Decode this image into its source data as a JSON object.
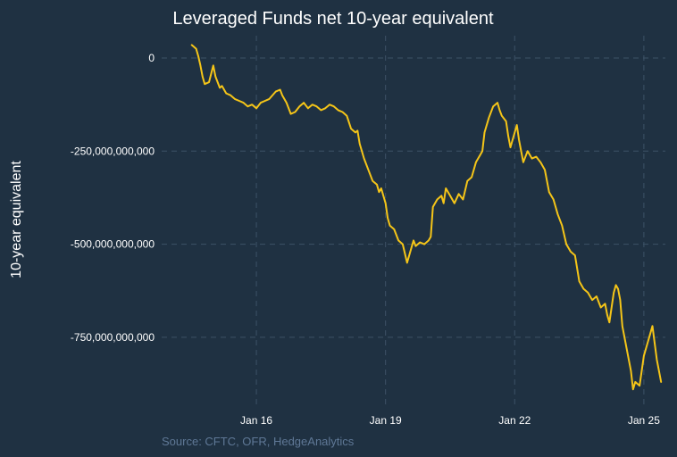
{
  "chart_data": {
    "type": "line",
    "title": "Leveraged Funds net 10-year equivalent",
    "xlabel": "",
    "ylabel": "10-year equivalent",
    "source": "Source: CFTC, OFR, HedgeAnalytics",
    "x_ticks": [
      {
        "label": "Jan 16",
        "value": 2016.0
      },
      {
        "label": "Jan 19",
        "value": 2019.0
      },
      {
        "label": "Jan 22",
        "value": 2022.0
      },
      {
        "label": "Jan 25",
        "value": 2025.0
      }
    ],
    "y_ticks": [
      {
        "label": "0",
        "value": 0
      },
      {
        "label": "-250,000,000,000",
        "value": -250000000000
      },
      {
        "label": "-500,000,000,000",
        "value": -500000000000
      },
      {
        "label": "-750,000,000,000",
        "value": -750000000000
      }
    ],
    "xlim": [
      2013.8,
      2025.5
    ],
    "ylim": [
      -935000000000,
      60000000000
    ],
    "grid": true,
    "series": [
      {
        "color": "#f5c518",
        "x": [
          2014.5,
          2014.6,
          2014.65,
          2014.7,
          2014.75,
          2014.8,
          2014.9,
          2015.0,
          2015.05,
          2015.15,
          2015.2,
          2015.3,
          2015.4,
          2015.5,
          2015.6,
          2015.7,
          2015.8,
          2015.9,
          2016.0,
          2016.1,
          2016.2,
          2016.3,
          2016.45,
          2016.55,
          2016.6,
          2016.7,
          2016.8,
          2016.9,
          2017.0,
          2017.1,
          2017.2,
          2017.3,
          2017.4,
          2017.5,
          2017.6,
          2017.7,
          2017.8,
          2017.9,
          2018.0,
          2018.1,
          2018.2,
          2018.3,
          2018.35,
          2018.4,
          2018.5,
          2018.6,
          2018.7,
          2018.8,
          2018.85,
          2018.9,
          2019.0,
          2019.05,
          2019.1,
          2019.2,
          2019.3,
          2019.4,
          2019.5,
          2019.6,
          2019.65,
          2019.7,
          2019.8,
          2019.9,
          2020.0,
          2020.05,
          2020.1,
          2020.2,
          2020.3,
          2020.35,
          2020.4,
          2020.5,
          2020.6,
          2020.7,
          2020.8,
          2020.9,
          2021.0,
          2021.1,
          2021.2,
          2021.25,
          2021.3,
          2021.4,
          2021.5,
          2021.6,
          2021.65,
          2021.7,
          2021.8,
          2021.85,
          2021.9,
          2022.0,
          2022.05,
          2022.1,
          2022.2,
          2022.3,
          2022.4,
          2022.5,
          2022.6,
          2022.7,
          2022.8,
          2022.9,
          2023.0,
          2023.1,
          2023.2,
          2023.3,
          2023.4,
          2023.5,
          2023.6,
          2023.7,
          2023.8,
          2023.9,
          2024.0,
          2024.1,
          2024.15,
          2024.2,
          2024.3,
          2024.35,
          2024.4,
          2024.45,
          2024.5,
          2024.6,
          2024.7,
          2024.75,
          2024.8,
          2024.9,
          2025.0,
          2025.1,
          2025.15,
          2025.2,
          2025.3,
          2025.4
        ],
        "y": [
          35000000000,
          25000000000,
          5000000000,
          -20000000000,
          -50000000000,
          -70000000000,
          -65000000000,
          -20000000000,
          -50000000000,
          -80000000000,
          -75000000000,
          -95000000000,
          -100000000000,
          -110000000000,
          -115000000000,
          -120000000000,
          -130000000000,
          -125000000000,
          -135000000000,
          -120000000000,
          -115000000000,
          -110000000000,
          -90000000000,
          -85000000000,
          -100000000000,
          -120000000000,
          -150000000000,
          -145000000000,
          -130000000000,
          -120000000000,
          -135000000000,
          -125000000000,
          -130000000000,
          -140000000000,
          -135000000000,
          -125000000000,
          -130000000000,
          -140000000000,
          -145000000000,
          -155000000000,
          -190000000000,
          -200000000000,
          -195000000000,
          -230000000000,
          -270000000000,
          -300000000000,
          -330000000000,
          -340000000000,
          -360000000000,
          -350000000000,
          -390000000000,
          -430000000000,
          -450000000000,
          -460000000000,
          -490000000000,
          -500000000000,
          -550000000000,
          -510000000000,
          -490000000000,
          -505000000000,
          -495000000000,
          -500000000000,
          -490000000000,
          -480000000000,
          -400000000000,
          -380000000000,
          -370000000000,
          -390000000000,
          -350000000000,
          -370000000000,
          -390000000000,
          -365000000000,
          -380000000000,
          -330000000000,
          -320000000000,
          -280000000000,
          -260000000000,
          -250000000000,
          -200000000000,
          -160000000000,
          -130000000000,
          -120000000000,
          -140000000000,
          -155000000000,
          -170000000000,
          -210000000000,
          -240000000000,
          -200000000000,
          -180000000000,
          -220000000000,
          -280000000000,
          -250000000000,
          -270000000000,
          -265000000000,
          -280000000000,
          -300000000000,
          -360000000000,
          -380000000000,
          -420000000000,
          -450000000000,
          -500000000000,
          -520000000000,
          -530000000000,
          -600000000000,
          -620000000000,
          -630000000000,
          -650000000000,
          -640000000000,
          -670000000000,
          -660000000000,
          -690000000000,
          -710000000000,
          -630000000000,
          -610000000000,
          -620000000000,
          -650000000000,
          -720000000000,
          -780000000000,
          -840000000000,
          -890000000000,
          -870000000000,
          -880000000000,
          -800000000000,
          -760000000000,
          -740000000000,
          -720000000000,
          -810000000000,
          -870000000000
        ]
      }
    ]
  }
}
